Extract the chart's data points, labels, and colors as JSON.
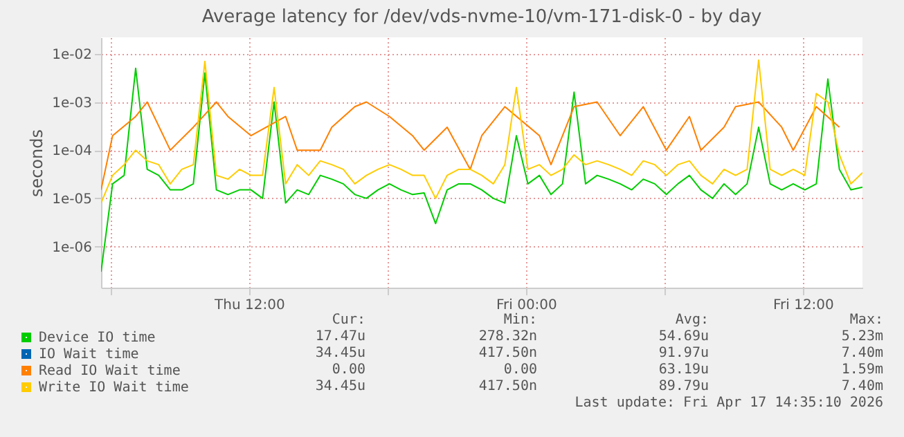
{
  "chart_data": {
    "type": "line",
    "title": "Average latency for /dev/vds-nvme-10/vm-171-disk-0 - by day",
    "ylabel": "seconds",
    "log": "y",
    "grid": true,
    "legend": "bottom left",
    "marker": "none",
    "line_style": "solid",
    "x": [
      "2026-04-16T05:35",
      "2026-04-16T06:05",
      "2026-04-16T06:35",
      "2026-04-16T07:05",
      "2026-04-16T07:35",
      "2026-04-16T08:05",
      "2026-04-16T08:35",
      "2026-04-16T09:05",
      "2026-04-16T09:35",
      "2026-04-16T10:05",
      "2026-04-16T10:35",
      "2026-04-16T11:05",
      "2026-04-16T11:35",
      "2026-04-16T12:05",
      "2026-04-16T12:35",
      "2026-04-16T13:05",
      "2026-04-16T13:35",
      "2026-04-16T14:05",
      "2026-04-16T14:35",
      "2026-04-16T15:05",
      "2026-04-16T15:35",
      "2026-04-16T16:05",
      "2026-04-16T16:35",
      "2026-04-16T17:05",
      "2026-04-16T17:35",
      "2026-04-16T18:05",
      "2026-04-16T18:35",
      "2026-04-16T19:05",
      "2026-04-16T19:35",
      "2026-04-16T20:05",
      "2026-04-16T20:35",
      "2026-04-16T21:05",
      "2026-04-16T21:35",
      "2026-04-16T22:05",
      "2026-04-16T22:35",
      "2026-04-16T23:05",
      "2026-04-16T23:35",
      "2026-04-17T00:05",
      "2026-04-17T00:35",
      "2026-04-17T01:05",
      "2026-04-17T01:35",
      "2026-04-17T02:05",
      "2026-04-17T02:35",
      "2026-04-17T03:05",
      "2026-04-17T03:35",
      "2026-04-17T04:05",
      "2026-04-17T04:35",
      "2026-04-17T05:05",
      "2026-04-17T05:35",
      "2026-04-17T06:05",
      "2026-04-17T06:35",
      "2026-04-17T07:05",
      "2026-04-17T07:35",
      "2026-04-17T08:05",
      "2026-04-17T08:35",
      "2026-04-17T09:05",
      "2026-04-17T09:35",
      "2026-04-17T10:05",
      "2026-04-17T10:35",
      "2026-04-17T11:05",
      "2026-04-17T11:35",
      "2026-04-17T12:05",
      "2026-04-17T12:35",
      "2026-04-17T13:05",
      "2026-04-17T13:35",
      "2026-04-17T14:05",
      "2026-04-17T14:35"
    ],
    "series": [
      {
        "name": "Device IO time",
        "color": "#00cc00",
        "values": [
          3e-07,
          2e-05,
          3e-05,
          0.005,
          4e-05,
          3e-05,
          1.5e-05,
          1.5e-05,
          2e-05,
          0.004,
          1.5e-05,
          1.2e-05,
          1.5e-05,
          1.5e-05,
          1e-05,
          0.001,
          8e-06,
          1.5e-05,
          1.2e-05,
          3e-05,
          2.5e-05,
          2e-05,
          1.2e-05,
          1e-05,
          1.5e-05,
          2e-05,
          1.5e-05,
          1.2e-05,
          1.3e-05,
          3e-06,
          1.5e-05,
          2e-05,
          2e-05,
          1.5e-05,
          1e-05,
          8e-06,
          0.0002,
          2e-05,
          3e-05,
          1.2e-05,
          2e-05,
          0.0016,
          2e-05,
          3e-05,
          2.5e-05,
          2e-05,
          1.5e-05,
          2.5e-05,
          2e-05,
          1.2e-05,
          2e-05,
          3e-05,
          1.5e-05,
          1e-05,
          2e-05,
          1.2e-05,
          2e-05,
          0.0003,
          2e-05,
          1.5e-05,
          2e-05,
          1.5e-05,
          2e-05,
          0.003,
          4e-05,
          1.5e-05,
          1.7e-05
        ]
      },
      {
        "name": "IO Wait time",
        "color": "#0066b3",
        "values": [
          null,
          null,
          null,
          null,
          null,
          null,
          null,
          null,
          null,
          null,
          null,
          null,
          null,
          null,
          null,
          null,
          null,
          null,
          null,
          null,
          null,
          null,
          null,
          null,
          null,
          null,
          null,
          null,
          null,
          null,
          null,
          null,
          null,
          null,
          null,
          null,
          null,
          null,
          null,
          null,
          null,
          null,
          null,
          null,
          null,
          null,
          null,
          null,
          null,
          null,
          null,
          null,
          null,
          null,
          null,
          null,
          null,
          null,
          null,
          null,
          null,
          null,
          null,
          null,
          null,
          null,
          null
        ]
      },
      {
        "name": "Read IO Wait time",
        "color": "#ff8000",
        "values": [
          1.5e-05,
          0.0002,
          null,
          0.0005,
          0.001,
          null,
          0.0001,
          null,
          0.0003,
          null,
          0.001,
          0.0005,
          null,
          0.0002,
          null,
          null,
          0.0005,
          0.0001,
          null,
          0.0001,
          0.0003,
          null,
          0.0008,
          0.001,
          null,
          0.0005,
          null,
          0.0002,
          0.0001,
          null,
          0.0003,
          null,
          4e-05,
          0.0002,
          null,
          0.0008,
          null,
          null,
          0.0002,
          5e-05,
          null,
          0.0008,
          null,
          0.001,
          null,
          0.0002,
          null,
          0.0008,
          null,
          0.0001,
          null,
          0.0005,
          0.0001,
          null,
          0.0003,
          0.0008,
          null,
          0.001,
          null,
          0.0003,
          0.0001,
          null,
          0.0008,
          null,
          0.0003,
          null,
          null
        ]
      },
      {
        "name": "Write IO Wait time",
        "color": "#ffcc00",
        "values": [
          8e-06,
          3e-05,
          5e-05,
          0.0001,
          6e-05,
          5e-05,
          2e-05,
          4e-05,
          5e-05,
          0.007,
          3e-05,
          2.5e-05,
          4e-05,
          3e-05,
          3e-05,
          0.002,
          2e-05,
          5e-05,
          3e-05,
          6e-05,
          5e-05,
          4e-05,
          2e-05,
          3e-05,
          4e-05,
          5e-05,
          4e-05,
          3e-05,
          3e-05,
          1e-05,
          3e-05,
          4e-05,
          4e-05,
          3e-05,
          2e-05,
          5e-05,
          0.002,
          4e-05,
          5e-05,
          3e-05,
          4e-05,
          8e-05,
          5e-05,
          6e-05,
          5e-05,
          4e-05,
          3e-05,
          6e-05,
          5e-05,
          3e-05,
          5e-05,
          6e-05,
          3e-05,
          2e-05,
          4e-05,
          3e-05,
          4e-05,
          0.0074,
          4e-05,
          3e-05,
          4e-05,
          3e-05,
          0.0015,
          0.001,
          8e-05,
          2e-05,
          3.4e-05
        ]
      }
    ],
    "xlim": [
      "2026-04-16T05:35",
      "2026-04-17T14:35"
    ],
    "xticks": [
      {
        "value": "2026-04-16T06:00",
        "label": null
      },
      {
        "value": "2026-04-16T12:00",
        "label": "Thu 12:00"
      },
      {
        "value": "2026-04-16T18:00",
        "label": null
      },
      {
        "value": "2026-04-17T00:00",
        "label": "Fri 00:00"
      },
      {
        "value": "2026-04-17T06:00",
        "label": null
      },
      {
        "value": "2026-04-17T12:00",
        "label": "Fri 12:00"
      }
    ],
    "ylim": [
      1.4e-07,
      0.022
    ],
    "yticks": [
      {
        "value": 1e-06,
        "label": "1e-06"
      },
      {
        "value": 1e-05,
        "label": "1e-05"
      },
      {
        "value": 0.0001,
        "label": "1e-04"
      },
      {
        "value": 0.001,
        "label": "1e-03"
      },
      {
        "value": 0.01,
        "label": "1e-02"
      }
    ],
    "annotations": [
      "Cur:",
      "Min:",
      "Avg:",
      "Max:",
      "17.47u",
      "278.32n",
      "54.69u",
      "5.23m",
      "34.45u",
      "417.50n",
      "91.97u",
      "7.40m",
      "0.00",
      "0.00",
      "63.19u",
      "1.59m",
      "34.45u",
      "417.50n",
      "89.79u",
      "7.40m",
      "Last update: Fri Apr 17 14:35:10 2026"
    ]
  }
}
